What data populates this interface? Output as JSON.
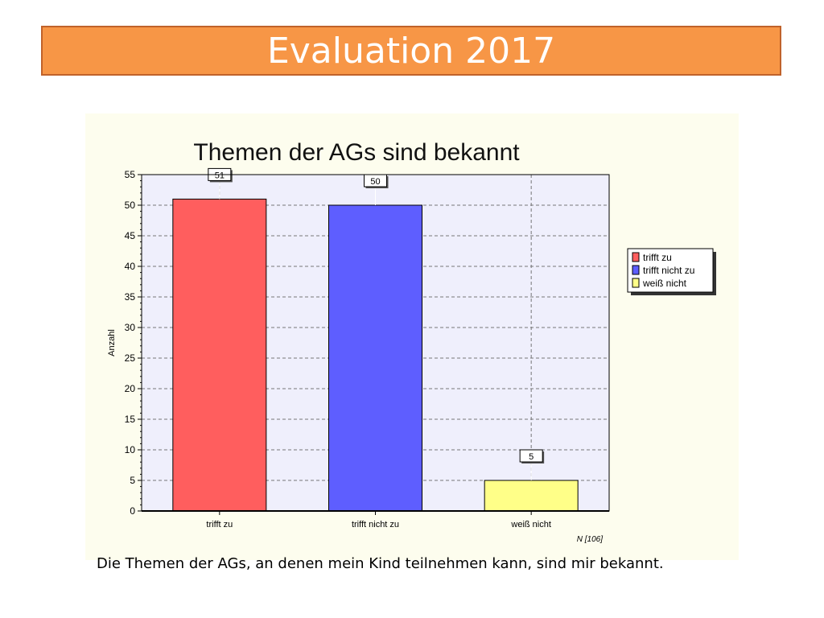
{
  "slide": {
    "title": "Evaluation 2017",
    "caption": "Die Themen der AGs, an denen mein Kind teilnehmen kann, sind mir bekannt."
  },
  "chart_data": {
    "type": "bar",
    "title": "Themen der AGs sind bekannt",
    "ylabel": "Anzahl",
    "xlabel": "",
    "note": "N [106]",
    "categories": [
      "trifft zu",
      "trifft nicht zu",
      "weiß nicht"
    ],
    "values": [
      51,
      50,
      5
    ],
    "colors": [
      "#ff5e5e",
      "#5e5eff",
      "#ffff88"
    ],
    "ylim": [
      0,
      55
    ],
    "yticks": [
      0,
      5,
      10,
      15,
      20,
      25,
      30,
      35,
      40,
      45,
      50,
      55
    ],
    "grid": true,
    "legend": {
      "position": "right",
      "entries": [
        "trifft zu",
        "trifft nicht zu",
        "weiß nicht"
      ]
    }
  }
}
